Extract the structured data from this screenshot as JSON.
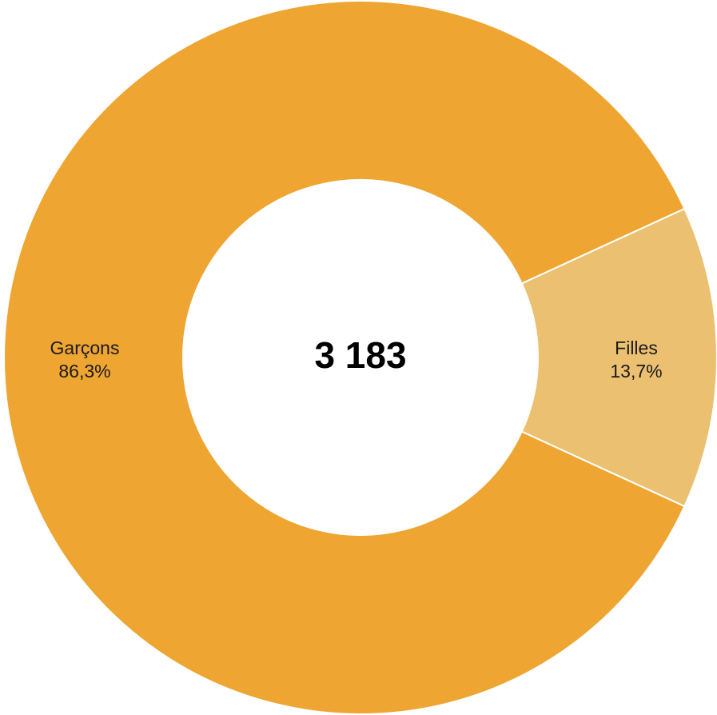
{
  "chart_data": {
    "type": "pie",
    "variant": "donut",
    "center_label": "3 183",
    "slices": [
      {
        "name": "Garçons",
        "value": 86.3,
        "value_label": "86,3%",
        "color": "#EEA531"
      },
      {
        "name": "Filles",
        "value": 13.7,
        "value_label": "13,7%",
        "color": "#EBC071"
      }
    ],
    "separator_color": "#ffffff"
  }
}
